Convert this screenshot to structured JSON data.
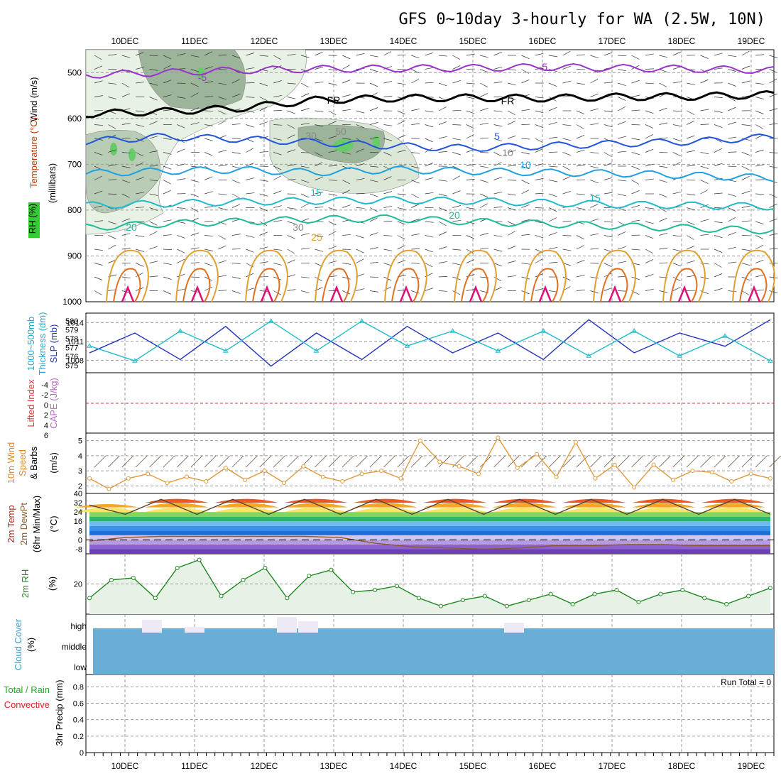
{
  "header": {
    "title": "GFS 0~10day 3-hourly for WA (2.5W, 10N)"
  },
  "axes": {
    "day_labels": [
      "10DEC",
      "11DEC",
      "12DEC",
      "13DEC",
      "14DEC",
      "15DEC",
      "16DEC",
      "17DEC",
      "18DEC",
      "19DEC"
    ],
    "upper": {
      "pressure_ticks": [
        "500",
        "600",
        "700",
        "800",
        "900",
        "1000"
      ],
      "ylabel_wind": "Wind (m/s)",
      "ylabel_temp": "Temperature (°C)",
      "ylabel_pres": "(millibars)",
      "ylabel_rh": "RH (%)"
    },
    "slp": {
      "thick_ticks": [
        "580",
        "579",
        "578",
        "577",
        "576",
        "575"
      ],
      "slp_ticks": [
        "1014",
        "1011",
        "1008"
      ],
      "ylabel_thick": "1000~500mb",
      "ylabel_thick2": "Thickness (dm)",
      "ylabel_slp": "SLP (mb)"
    },
    "li": {
      "ticks": [
        "-4",
        "-2",
        "0",
        "2",
        "4",
        "6"
      ],
      "ylabel_li": "Lifted Index",
      "ylabel_cape": "CAPE (J/kg)"
    },
    "wind10": {
      "ticks": [
        "5",
        "4",
        "3",
        "2"
      ],
      "ylabel1": "10m Wind",
      "ylabel2": "Speed",
      "ylabel3": "& Barbs",
      "ylabel_unit": "(m/s)"
    },
    "temp2m": {
      "ticks": [
        "40",
        "32",
        "24",
        "16",
        "8",
        "0",
        "-8"
      ],
      "ylabel1": "2m Temp",
      "ylabel2": "2m DewPt",
      "ylabel3": "(6hr Min/Max)",
      "ylabel_unit": "(°C)"
    },
    "rh2m": {
      "ticks": [
        "20"
      ],
      "ylabel": "2m RH",
      "ylabel_unit": "(%)"
    },
    "cloud": {
      "levels": [
        "high",
        "middle",
        "low"
      ],
      "ylabel": "Cloud Cover",
      "ylabel_unit": "(%)"
    },
    "precip": {
      "ticks": [
        "0.8",
        "0.6",
        "0.4",
        "0.2",
        "0"
      ],
      "ylabel_rain": "Total / Rain",
      "ylabel_conv": "Convective",
      "ylabel_unit": "3hr Precip (mm)",
      "run_total": "Run Total = 0"
    }
  },
  "colors": {
    "temp_cold": "#9933cc",
    "temp_fr": "#000000",
    "temp_5": "#2255dd",
    "temp_10": "#1fa0e0",
    "temp_15": "#22bbcc",
    "temp_20": "#22bb99",
    "temp_25": "#e0a030",
    "temp_30": "#e07020",
    "temp_35": "#dd1177",
    "slp_line": "#2233bb",
    "thick_line": "#22bbcc",
    "wind_line": "#e09a40",
    "rh_line": "#228822",
    "cloud_fill": "#6aaed6",
    "rh_fill": "#e6f2e6"
  },
  "chart_data": [
    {
      "type": "line",
      "panel": "upper-air temperature contours",
      "title": "GFS 0~10day 3-hourly for WA (2.5W, 10N)",
      "x": [
        "10DEC",
        "11DEC",
        "12DEC",
        "13DEC",
        "14DEC",
        "15DEC",
        "16DEC",
        "17DEC",
        "18DEC",
        "19DEC"
      ],
      "ylabel": "(millibars)",
      "ylim": [
        450,
        1000
      ],
      "contour_labels": [
        "-5",
        "FR",
        "5",
        "10",
        "15",
        "20",
        "25",
        "-5",
        "FR",
        "5",
        "10",
        "15",
        "20",
        "30",
        "30",
        "50",
        "10"
      ],
      "series": [
        {
          "name": "-5",
          "values": [
            505,
            500,
            495,
            492,
            491,
            490,
            488,
            490,
            492,
            495
          ]
        },
        {
          "name": "FR",
          "values": [
            590,
            585,
            578,
            560,
            556,
            555,
            556,
            553,
            552,
            548
          ]
        },
        {
          "name": "5",
          "values": [
            650,
            640,
            645,
            652,
            660,
            665,
            660,
            655,
            650,
            640
          ]
        },
        {
          "name": "10",
          "values": [
            720,
            715,
            712,
            718,
            712,
            715,
            718,
            720,
            725,
            730
          ]
        },
        {
          "name": "15",
          "values": [
            790,
            786,
            782,
            780,
            778,
            780,
            784,
            788,
            790,
            792
          ]
        },
        {
          "name": "20",
          "values": [
            838,
            830,
            825,
            820,
            818,
            825,
            830,
            835,
            840,
            845
          ]
        }
      ]
    },
    {
      "type": "line",
      "panel": "SLP and thickness",
      "ylabel": "SLP (mb)",
      "ylim": [
        1006,
        1015
      ],
      "series": [
        {
          "name": "SLP",
          "values": [
            1009,
            1012,
            1008,
            1013,
            1007,
            1012,
            1008,
            1013,
            1009,
            1012,
            1008,
            1014,
            1009,
            1012,
            1010,
            1014
          ]
        },
        {
          "name": "Thickness",
          "values": [
            577.5,
            576,
            579,
            577,
            580,
            577,
            580,
            577.5,
            579,
            577,
            579,
            576.5,
            579,
            576.5,
            578.5,
            576
          ]
        }
      ]
    },
    {
      "type": "line",
      "panel": "10m wind speed",
      "ylabel": "(m/s)",
      "ylim": [
        1.5,
        5.5
      ],
      "series": [
        {
          "name": "10m Wind Speed",
          "values": [
            2.5,
            1.8,
            2.5,
            2.8,
            2.2,
            2.6,
            2.3,
            3.2,
            2.4,
            3.0,
            2.2,
            3.3,
            2.6,
            2.3,
            2.8,
            3.0,
            2.5,
            5.0,
            3.6,
            3.3,
            2.8,
            5.2,
            3.2,
            4.1,
            2.6,
            4.9,
            2.5,
            3.4,
            1.9,
            3.4,
            2.4,
            3.0,
            2.9,
            2.3,
            2.8,
            2.5
          ]
        }
      ]
    },
    {
      "type": "line",
      "panel": "2m temperature and dewpoint",
      "ylabel": "(°C)",
      "ylim": [
        -12,
        40
      ],
      "series": [
        {
          "name": "2m Temp",
          "values": [
            30,
            22,
            35,
            22,
            35,
            22,
            35,
            22,
            35,
            22,
            35,
            22,
            35,
            22,
            35,
            22,
            35,
            22,
            35,
            22
          ]
        },
        {
          "name": "2m DewPt",
          "values": [
            -1,
            2,
            3,
            3,
            3,
            3,
            3,
            2,
            -3,
            -6,
            -7,
            -8,
            -7,
            -5,
            -5,
            -4,
            -4,
            -5,
            -5,
            -5
          ]
        }
      ]
    },
    {
      "type": "area",
      "panel": "2m RH",
      "ylabel": "(%)",
      "ylim": [
        5,
        35
      ],
      "series": [
        {
          "name": "2m RH",
          "values": [
            13,
            22,
            23,
            13,
            28,
            32,
            14,
            22,
            28,
            13,
            24,
            27,
            16,
            17,
            19,
            13,
            9,
            12,
            14,
            9,
            12,
            15,
            10,
            15,
            17,
            11,
            15,
            17,
            13,
            10,
            14,
            18
          ]
        }
      ]
    },
    {
      "type": "bar",
      "panel": "Cloud Cover",
      "ylabel": "(%)",
      "categories": [
        "high",
        "middle",
        "low"
      ],
      "values": [
        100,
        100,
        100
      ]
    },
    {
      "type": "bar",
      "panel": "3hr Precip",
      "ylabel": "3hr Precip (mm)",
      "ylim": [
        0,
        1.0
      ],
      "values": [
        0,
        0,
        0,
        0,
        0,
        0,
        0,
        0,
        0,
        0
      ]
    }
  ]
}
